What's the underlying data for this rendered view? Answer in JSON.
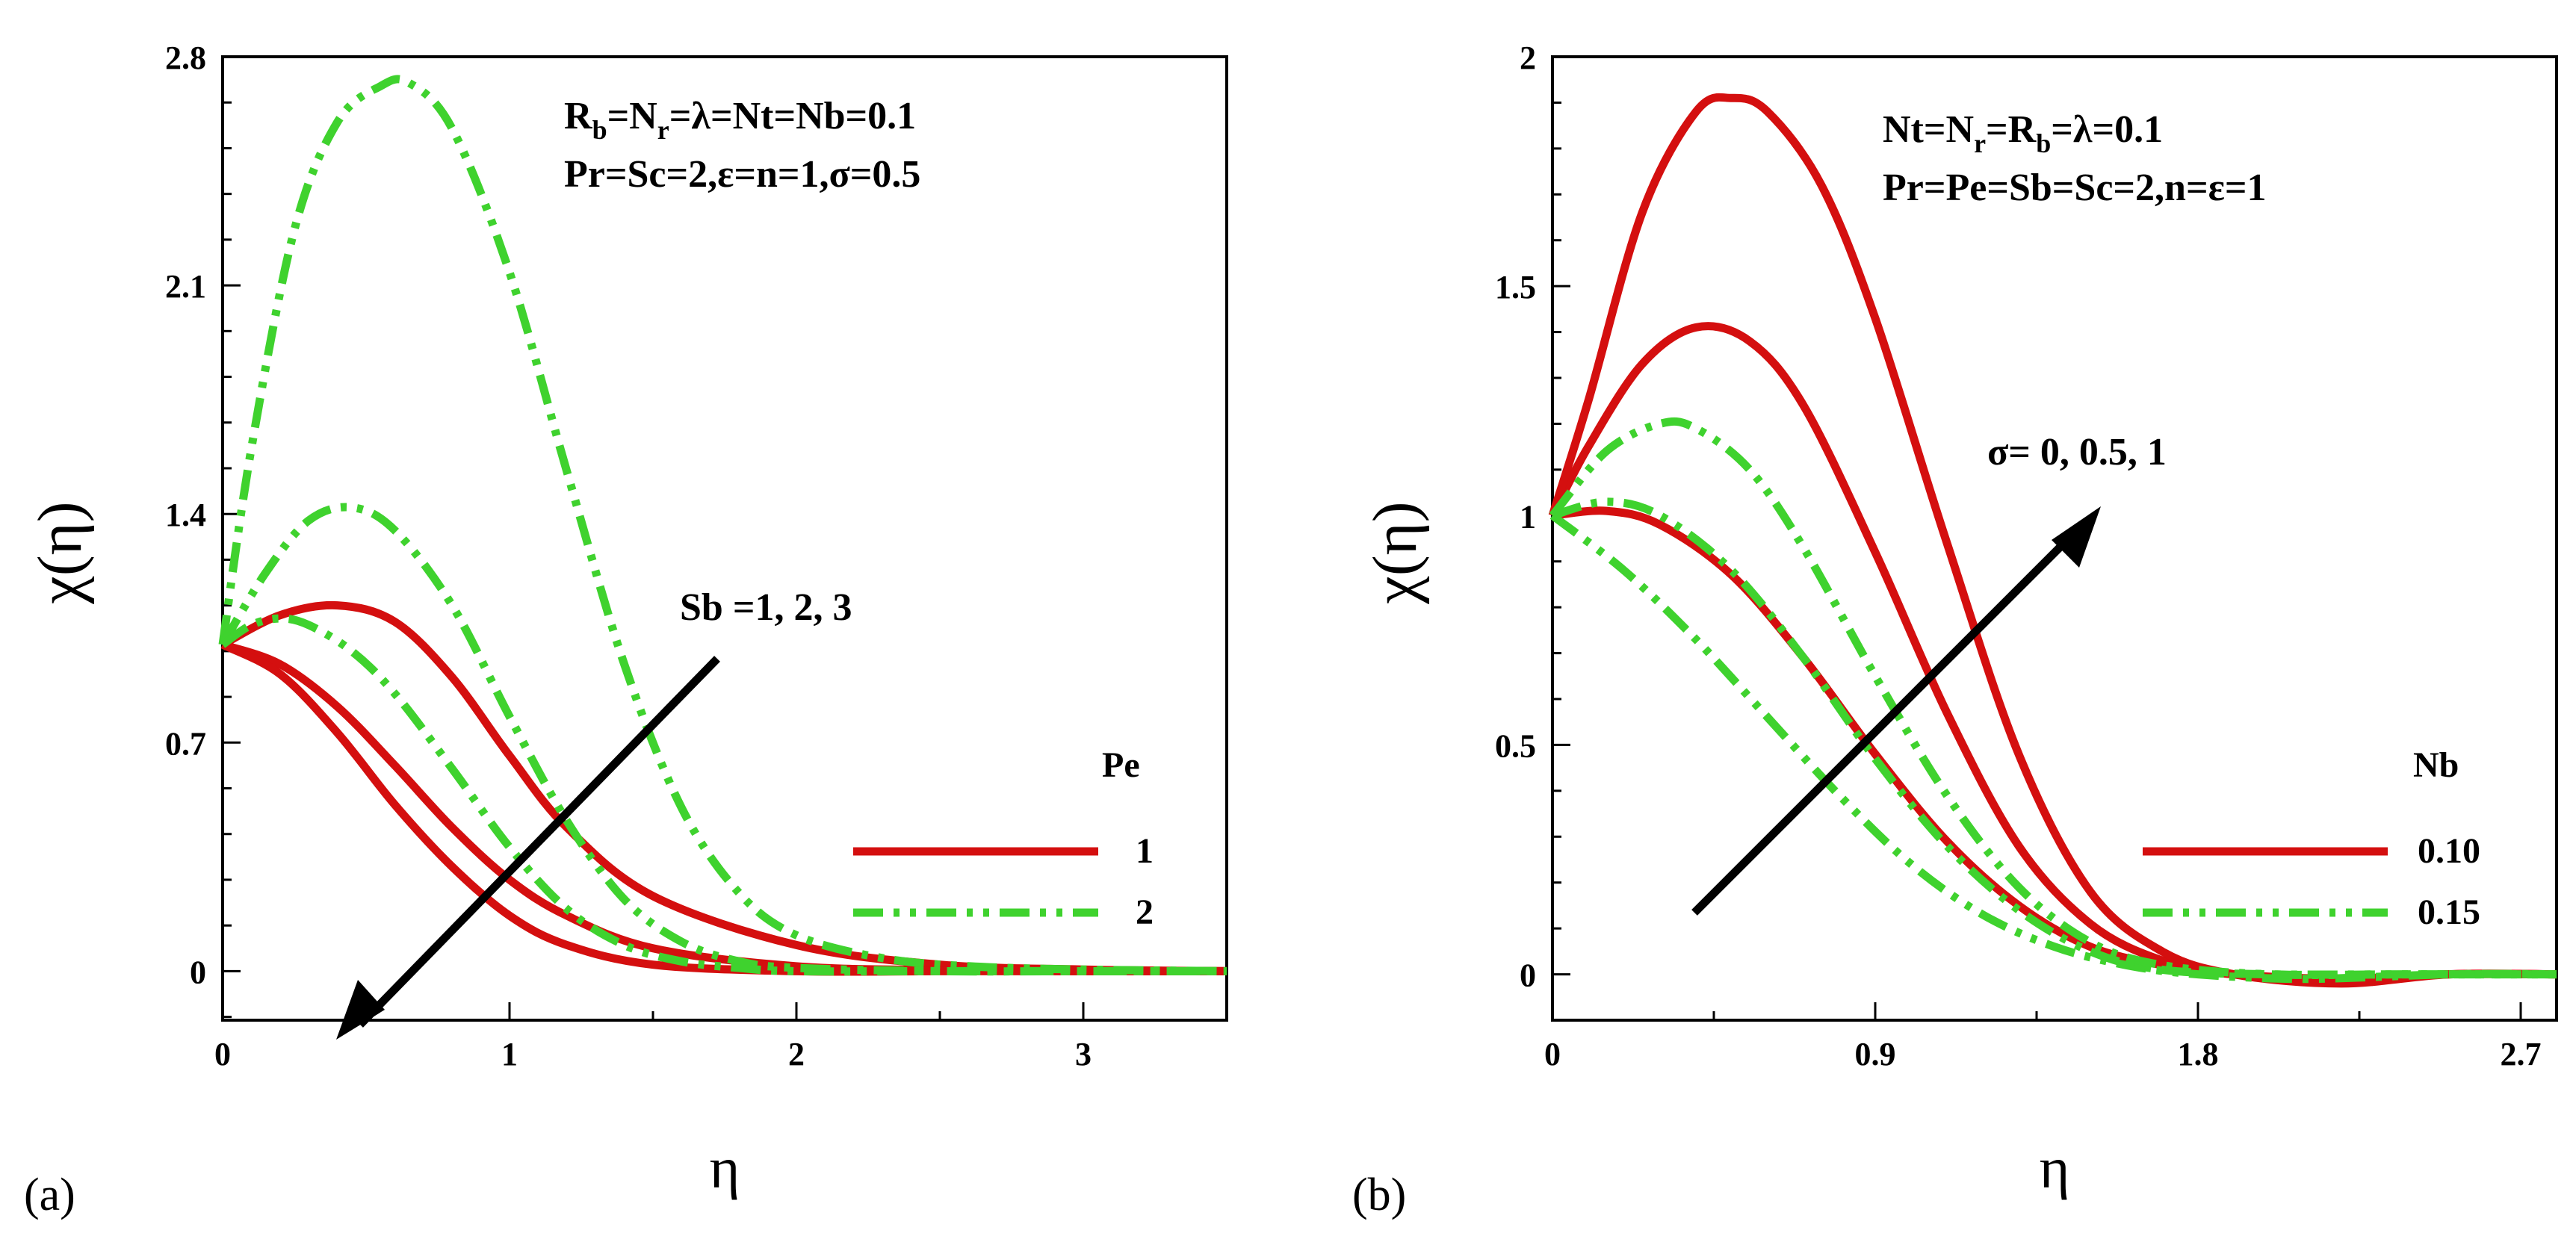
{
  "colors": {
    "red": "#d40f0f",
    "green": "#3fd22e",
    "axis": "#000000"
  },
  "chart_data": [
    {
      "type": "line",
      "panel": "(a)",
      "xlabel": "η",
      "ylabel": "χ(η)",
      "xlim": [
        0,
        3.5
      ],
      "ylim": [
        -0.15,
        2.8
      ],
      "xticks": [
        "0",
        "1",
        "2",
        "3"
      ],
      "yticks": [
        "0",
        "0.7",
        "1.4",
        "2.1",
        "2.8"
      ],
      "annotation": {
        "line1_main": "R",
        "line1_sub1": "b",
        "line1_mid": "=N",
        "line1_sub2": "r",
        "line1_rest": "=λ=Nt=Nb=0.1",
        "line2": "Pr=Sc=2,ε=n=1,σ=0.5"
      },
      "arrow_label": "Sb =1, 2, 3",
      "legend": {
        "title": "Pe",
        "entries": [
          "1",
          "2"
        ]
      },
      "series": [
        {
          "name": "Pe=1, Sb=1",
          "group": "1",
          "x": [
            0,
            0.2,
            0.4,
            0.6,
            0.8,
            1.0,
            1.2,
            1.5,
            2.0,
            2.5,
            3.0,
            3.5
          ],
          "y": [
            1.0,
            1.09,
            1.12,
            1.07,
            0.9,
            0.66,
            0.44,
            0.23,
            0.08,
            0.02,
            0.005,
            0.0
          ]
        },
        {
          "name": "Pe=1, Sb=2",
          "group": "1",
          "x": [
            0,
            0.2,
            0.4,
            0.6,
            0.8,
            1.0,
            1.2,
            1.5,
            2.0,
            2.5,
            3.0,
            3.5
          ],
          "y": [
            1.0,
            0.94,
            0.81,
            0.63,
            0.44,
            0.28,
            0.17,
            0.07,
            0.015,
            0.003,
            0.0,
            0.0
          ]
        },
        {
          "name": "Pe=1, Sb=3",
          "group": "1",
          "x": [
            0,
            0.2,
            0.4,
            0.6,
            0.8,
            1.0,
            1.2,
            1.5,
            2.0,
            2.5,
            3.0,
            3.5
          ],
          "y": [
            1.0,
            0.91,
            0.73,
            0.51,
            0.32,
            0.17,
            0.08,
            0.02,
            0.0,
            0.0,
            0.0,
            0.0
          ]
        },
        {
          "name": "Pe=2, Sb=1",
          "group": "2",
          "x": [
            0,
            0.1,
            0.25,
            0.4,
            0.55,
            0.65,
            0.8,
            1.0,
            1.2,
            1.4,
            1.6,
            1.8,
            2.0,
            2.3,
            2.6,
            3.0,
            3.5
          ],
          "y": [
            1.0,
            1.6,
            2.27,
            2.6,
            2.71,
            2.72,
            2.58,
            2.14,
            1.53,
            0.94,
            0.5,
            0.24,
            0.11,
            0.04,
            0.015,
            0.005,
            0.0
          ]
        },
        {
          "name": "Pe=2, Sb=2",
          "group": "2",
          "x": [
            0,
            0.15,
            0.3,
            0.45,
            0.6,
            0.8,
            1.0,
            1.2,
            1.4,
            1.6,
            1.8,
            2.0,
            2.5,
            3.0,
            3.5
          ],
          "y": [
            1.0,
            1.22,
            1.38,
            1.42,
            1.35,
            1.12,
            0.78,
            0.46,
            0.22,
            0.09,
            0.03,
            0.01,
            0.0,
            0.0,
            0.0
          ]
        },
        {
          "name": "Pe=2, Sb=3",
          "group": "2",
          "x": [
            0,
            0.1,
            0.2,
            0.3,
            0.45,
            0.6,
            0.8,
            1.0,
            1.2,
            1.4,
            1.6,
            1.8,
            2.0,
            2.5,
            3.0,
            3.5
          ],
          "y": [
            1.0,
            1.06,
            1.08,
            1.06,
            0.98,
            0.85,
            0.62,
            0.38,
            0.19,
            0.08,
            0.03,
            0.01,
            0.0,
            0.0,
            0.0,
            0.0
          ]
        }
      ]
    },
    {
      "type": "line",
      "panel": "(b)",
      "xlabel": "η",
      "ylabel": "χ(η)",
      "xlim": [
        0,
        2.8
      ],
      "ylim": [
        -0.1,
        2.0
      ],
      "xticks": [
        "0",
        "0.9",
        "1.8",
        "2.7"
      ],
      "yticks": [
        "0",
        "0.5",
        "1",
        "1.5",
        "2"
      ],
      "annotation": {
        "line1_main": "Nt=N",
        "line1_sub1": "r",
        "line1_mid": "=R",
        "line1_sub2": "b",
        "line1_rest": "=λ=0.1",
        "line2": "Pr=Pe=Sb=Sc=2,n=ε=1"
      },
      "arrow_label": "σ= 0, 0.5, 1",
      "legend": {
        "title": "Nb",
        "entries": [
          "0.10",
          "0.15"
        ]
      },
      "series": [
        {
          "name": "Nb=0.10, σ=0",
          "group": "0.10",
          "x": [
            0,
            0.15,
            0.3,
            0.5,
            0.7,
            0.9,
            1.1,
            1.3,
            1.5,
            1.7,
            1.9,
            2.2,
            2.5,
            2.8
          ],
          "y": [
            1.0,
            1.01,
            0.98,
            0.87,
            0.69,
            0.48,
            0.29,
            0.15,
            0.06,
            0.02,
            0.0,
            -0.01,
            0.0,
            0.0
          ]
        },
        {
          "name": "Nb=0.10, σ=0.5",
          "group": "0.10",
          "x": [
            0,
            0.1,
            0.25,
            0.4,
            0.55,
            0.7,
            0.9,
            1.1,
            1.3,
            1.5,
            1.7,
            1.9,
            2.2,
            2.5,
            2.8
          ],
          "y": [
            1.0,
            1.15,
            1.33,
            1.41,
            1.38,
            1.24,
            0.92,
            0.57,
            0.28,
            0.11,
            0.03,
            0.0,
            -0.01,
            0.0,
            0.0
          ]
        },
        {
          "name": "Nb=0.10, σ=1",
          "group": "0.10",
          "x": [
            0,
            0.1,
            0.25,
            0.4,
            0.5,
            0.6,
            0.75,
            0.9,
            1.1,
            1.3,
            1.5,
            1.7,
            1.9,
            2.2,
            2.5,
            2.8
          ],
          "y": [
            1.0,
            1.25,
            1.66,
            1.88,
            1.91,
            1.88,
            1.72,
            1.43,
            0.94,
            0.48,
            0.18,
            0.05,
            0.0,
            -0.02,
            0.0,
            0.0
          ]
        },
        {
          "name": "Nb=0.15, σ=0",
          "group": "0.15",
          "x": [
            0,
            0.2,
            0.4,
            0.6,
            0.8,
            1.0,
            1.2,
            1.4,
            1.6,
            1.8,
            2.1,
            2.5,
            2.8
          ],
          "y": [
            1.0,
            0.88,
            0.73,
            0.56,
            0.39,
            0.24,
            0.13,
            0.06,
            0.02,
            0.0,
            -0.01,
            0.0,
            0.0
          ]
        },
        {
          "name": "Nb=0.15, σ=0.5",
          "group": "0.15",
          "x": [
            0,
            0.15,
            0.3,
            0.5,
            0.7,
            0.9,
            1.1,
            1.3,
            1.5,
            1.7,
            2.0,
            2.4,
            2.8
          ],
          "y": [
            1.0,
            1.03,
            1.0,
            0.88,
            0.69,
            0.47,
            0.28,
            0.14,
            0.05,
            0.01,
            0.0,
            0.0,
            0.0
          ]
        },
        {
          "name": "Nb=0.15, σ=1",
          "group": "0.15",
          "x": [
            0,
            0.15,
            0.3,
            0.4,
            0.55,
            0.7,
            0.9,
            1.1,
            1.3,
            1.5,
            1.7,
            2.0,
            2.4,
            2.8
          ],
          "y": [
            1.0,
            1.14,
            1.2,
            1.19,
            1.1,
            0.93,
            0.65,
            0.39,
            0.19,
            0.07,
            0.02,
            0.0,
            0.0,
            0.0
          ]
        }
      ]
    }
  ]
}
